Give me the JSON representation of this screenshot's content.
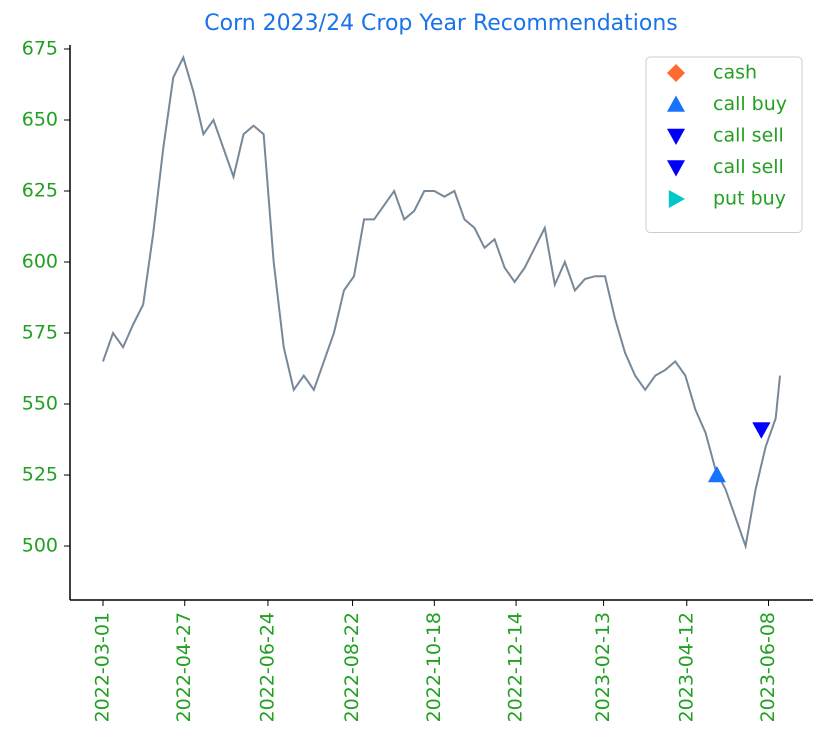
{
  "chart_data": {
    "type": "line",
    "title": "Corn 2023/24 Crop Year Recommendations",
    "xlim": [
      "2022-02-06",
      "2023-07-09"
    ],
    "xticks": [
      "2022-03-01",
      "2022-04-27",
      "2022-06-24",
      "2022-08-22",
      "2022-10-18",
      "2022-12-14",
      "2023-02-13",
      "2023-04-12",
      "2023-06-08"
    ],
    "ylim": [
      481,
      676.4
    ],
    "yticks": [
      500,
      525,
      550,
      575,
      600,
      625,
      650,
      675
    ],
    "legend": "upper right",
    "series": [
      {
        "color": "#778899",
        "x": [
          "2022-03-01",
          "2022-03-08",
          "2022-03-15",
          "2022-03-22",
          "2022-03-29",
          "2022-04-05",
          "2022-04-12",
          "2022-04-19",
          "2022-04-26",
          "2022-05-03",
          "2022-05-10",
          "2022-05-17",
          "2022-05-24",
          "2022-05-31",
          "2022-06-07",
          "2022-06-14",
          "2022-06-21",
          "2022-06-28",
          "2022-07-05",
          "2022-07-12",
          "2022-07-19",
          "2022-07-26",
          "2022-08-02",
          "2022-08-09",
          "2022-08-16",
          "2022-08-23",
          "2022-08-30",
          "2022-09-06",
          "2022-09-13",
          "2022-09-20",
          "2022-09-27",
          "2022-10-04",
          "2022-10-11",
          "2022-10-18",
          "2022-10-25",
          "2022-11-01",
          "2022-11-08",
          "2022-11-15",
          "2022-11-22",
          "2022-11-29",
          "2022-12-06",
          "2022-12-13",
          "2022-12-20",
          "2022-12-27",
          "2023-01-03",
          "2023-01-10",
          "2023-01-17",
          "2023-01-24",
          "2023-01-31",
          "2023-02-07",
          "2023-02-14",
          "2023-02-21",
          "2023-02-28",
          "2023-03-07",
          "2023-03-14",
          "2023-03-21",
          "2023-03-28",
          "2023-04-04",
          "2023-04-11",
          "2023-04-18",
          "2023-04-25",
          "2023-05-02",
          "2023-05-09",
          "2023-05-16",
          "2023-05-23",
          "2023-05-30",
          "2023-06-06",
          "2023-06-13",
          "2023-06-16"
        ],
        "values": [
          565,
          575,
          570,
          578,
          585,
          610,
          640,
          665,
          672,
          660,
          645,
          650,
          640,
          630,
          645,
          648,
          645,
          600,
          570,
          555,
          560,
          555,
          565,
          575,
          590,
          595,
          615,
          615,
          620,
          625,
          615,
          618,
          625,
          625,
          623,
          625,
          615,
          612,
          605,
          608,
          598,
          593,
          598,
          605,
          612,
          592,
          600,
          590,
          594,
          595,
          595,
          580,
          568,
          560,
          555,
          560,
          562,
          565,
          560,
          548,
          540,
          527,
          520,
          510,
          500,
          520,
          535,
          545,
          560
        ]
      },
      {
        "name": "cash",
        "color": "#ff6a33",
        "marker": "D",
        "x": [],
        "values": []
      },
      {
        "name": "call buy",
        "color": "#1874ff",
        "marker": "^",
        "x": [
          "2023-05-03"
        ],
        "values": [
          525
        ]
      },
      {
        "name": "call sell",
        "color": "#0000ff",
        "marker": "v",
        "x": [
          "2023-06-03"
        ],
        "values": [
          541
        ]
      },
      {
        "name": "call sell",
        "color": "#0000ff",
        "marker": "v",
        "x": [
          "2023-06-03"
        ],
        "values": [
          541
        ]
      },
      {
        "name": "put buy",
        "color": "#00c8c8",
        "marker": ">",
        "x": [],
        "values": []
      }
    ]
  }
}
